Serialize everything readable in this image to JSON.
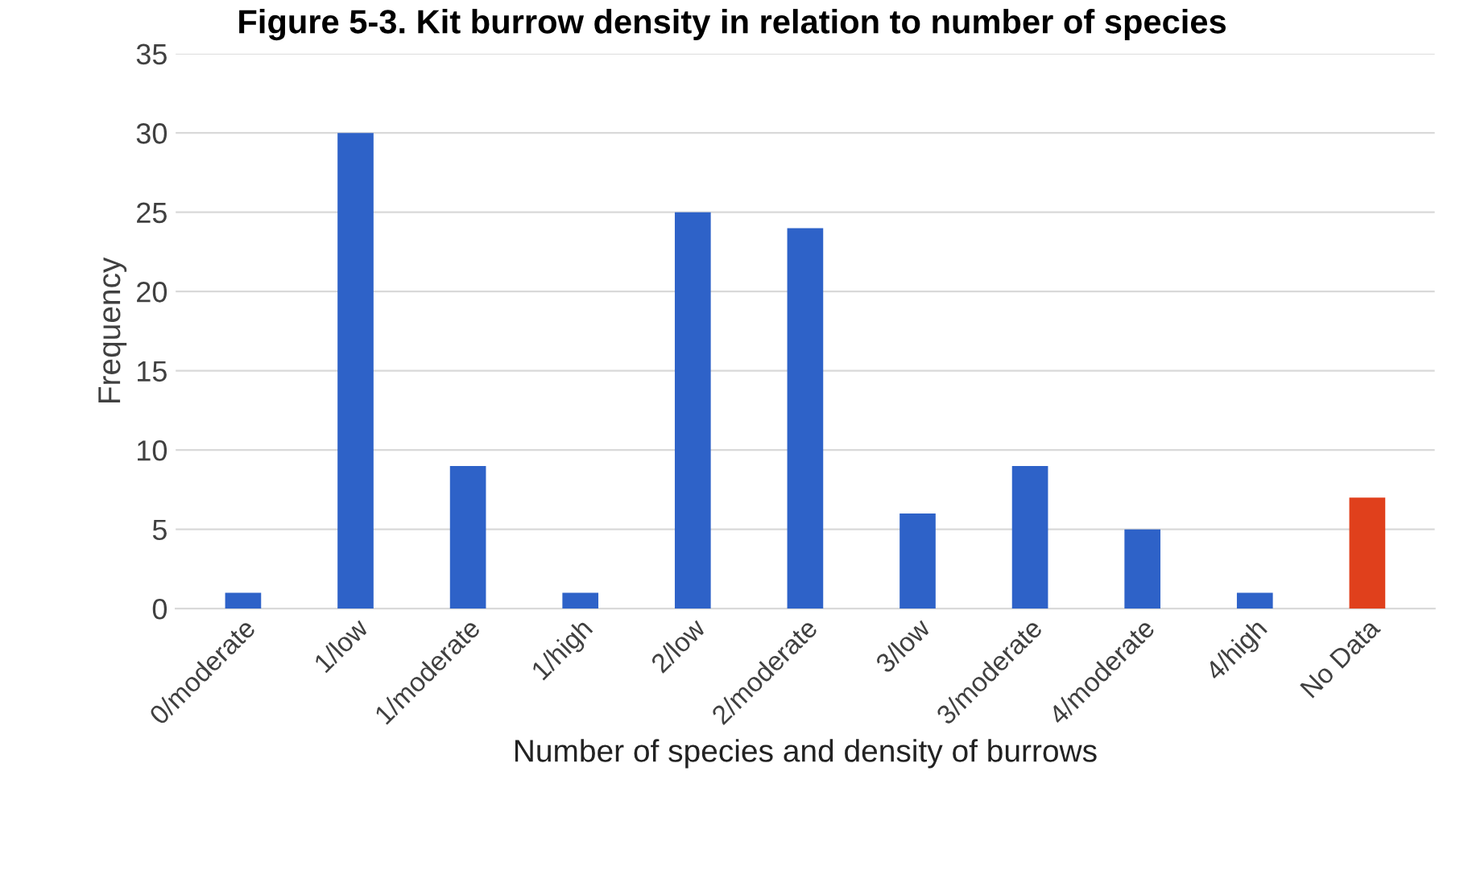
{
  "chart_data": {
    "type": "bar",
    "title": "Figure 5-3. Kit burrow density in relation to number of species",
    "categories": [
      "0/moderate",
      "1/low",
      "1/moderate",
      "1/high",
      "2/low",
      "2/moderate",
      "3/low",
      "3/moderate",
      "4/moderate",
      "4/high",
      "No Data"
    ],
    "values": [
      1,
      30,
      9,
      1,
      25,
      24,
      6,
      9,
      5,
      1,
      7
    ],
    "colors": [
      "#2e62c8",
      "#2e62c8",
      "#2e62c8",
      "#2e62c8",
      "#2e62c8",
      "#2e62c8",
      "#2e62c8",
      "#2e62c8",
      "#2e62c8",
      "#2e62c8",
      "#e0401c"
    ],
    "xlabel": "Number of species and density of burrows",
    "ylabel": "Frequency",
    "ylim": [
      0,
      35
    ],
    "yticks": [
      0,
      5,
      10,
      15,
      20,
      25,
      30,
      35
    ],
    "grid": "y"
  }
}
